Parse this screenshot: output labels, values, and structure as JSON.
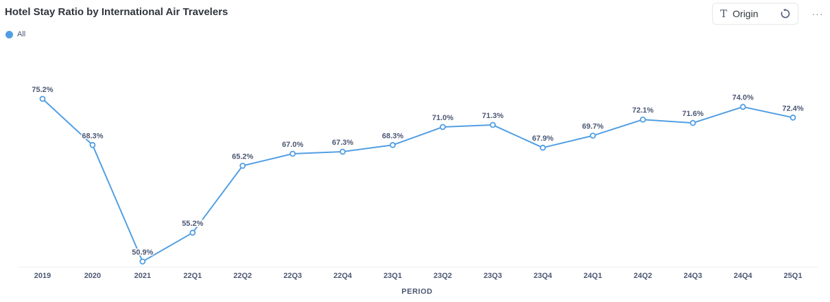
{
  "title": "Hotel Stay Ratio by International Air Travelers",
  "legend": {
    "label": "All",
    "color": "#509ee3"
  },
  "toolbar": {
    "origin_label": "Origin",
    "origin_icon": "text-t-icon",
    "reset_icon": "reset-icon",
    "more_icon": "more-icon",
    "more_label": "···"
  },
  "chart_data": {
    "type": "line",
    "title": "Hotel Stay Ratio by International Air Travelers",
    "xlabel": "PERIOD",
    "ylabel": "",
    "ylim": [
      50,
      76
    ],
    "grid": false,
    "legend_position": "top-left",
    "categories": [
      "2019",
      "2020",
      "2021",
      "22Q1",
      "22Q2",
      "22Q3",
      "22Q4",
      "23Q1",
      "23Q2",
      "23Q3",
      "23Q4",
      "24Q1",
      "24Q2",
      "24Q3",
      "24Q4",
      "25Q1"
    ],
    "series": [
      {
        "name": "All",
        "color": "#509ee3",
        "values": [
          75.2,
          68.3,
          50.9,
          55.2,
          65.2,
          67.0,
          67.3,
          68.3,
          71.0,
          71.3,
          67.9,
          69.7,
          72.1,
          71.6,
          74.0,
          72.4
        ],
        "labels": [
          "75.2%",
          "68.3%",
          "50.9%",
          "55.2%",
          "65.2%",
          "67.0%",
          "67.3%",
          "68.3%",
          "71.0%",
          "71.3%",
          "67.9%",
          "69.7%",
          "72.1%",
          "71.6%",
          "74.0%",
          "72.4%"
        ]
      }
    ]
  }
}
